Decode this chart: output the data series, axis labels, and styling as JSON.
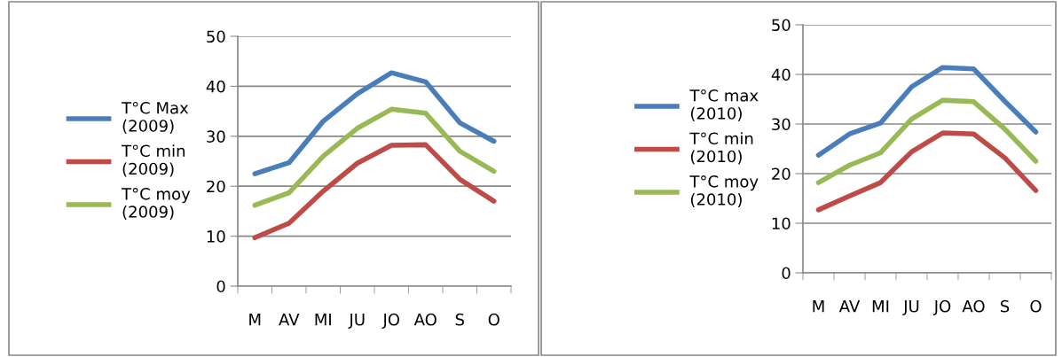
{
  "chart_data": [
    {
      "type": "line",
      "categories": [
        "M",
        "AV",
        "MI",
        "JU",
        "JO",
        "AO",
        "S",
        "O"
      ],
      "ylim": [
        0,
        50
      ],
      "yticks": [
        0,
        10,
        20,
        30,
        40,
        50
      ],
      "grid": "y",
      "legend": "left",
      "marker": "none",
      "line_style": "solid",
      "series": [
        {
          "name": "T°C Max (2009)",
          "color": "#4a7ebb",
          "values": [
            22.5,
            24.7,
            33,
            38.5,
            42.7,
            40.9,
            32.7,
            29
          ]
        },
        {
          "name": "T°C min (2009)",
          "color": "#be4b48",
          "values": [
            9.7,
            12.6,
            19,
            24.6,
            28.2,
            28.3,
            21.4,
            17
          ]
        },
        {
          "name": "T°C moy (2009)",
          "color": "#98b954",
          "values": [
            16.2,
            18.7,
            26,
            31.6,
            35.4,
            34.6,
            27,
            23
          ]
        }
      ]
    },
    {
      "type": "line",
      "categories": [
        "M",
        "AV",
        "MI",
        "JU",
        "JO",
        "AO",
        "S",
        "O"
      ],
      "ylim": [
        0,
        50
      ],
      "yticks": [
        0,
        10,
        20,
        30,
        40,
        50
      ],
      "grid": "y",
      "legend": "left",
      "marker": "none",
      "line_style": "solid",
      "series": [
        {
          "name": "T°C max (2010)",
          "color": "#4a7ebb",
          "values": [
            23.7,
            28,
            30.2,
            37.5,
            41.4,
            41.1,
            34.6,
            28.4
          ]
        },
        {
          "name": "T°C min (2010)",
          "color": "#be4b48",
          "values": [
            12.7,
            15.5,
            18.2,
            24.4,
            28.2,
            28,
            23.2,
            16.6
          ]
        },
        {
          "name": "T°C moy (2010)",
          "color": "#98b954",
          "values": [
            18.2,
            21.7,
            24.2,
            31,
            34.8,
            34.5,
            29,
            22.5
          ]
        }
      ]
    }
  ]
}
